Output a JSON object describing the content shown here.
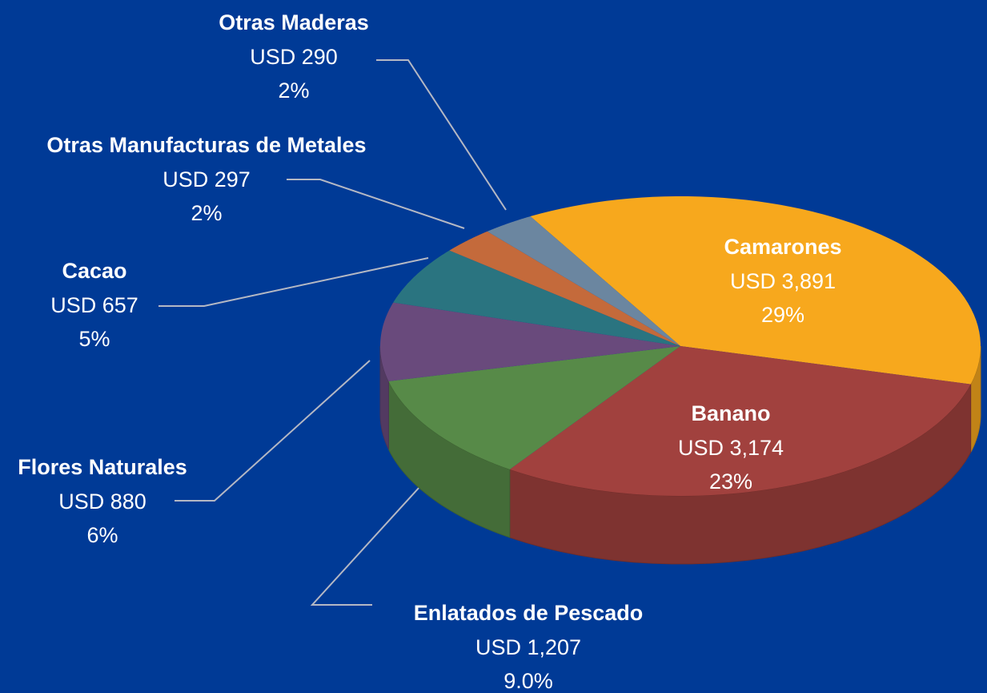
{
  "chart_data": {
    "type": "pie",
    "categories": [
      "Camarones",
      "Banano",
      "Enlatados de Pescado",
      "Flores Naturales",
      "Cacao",
      "Otras Manufacturas de Metales",
      "Otras Maderas"
    ],
    "values": [
      3891,
      3174,
      1207,
      880,
      657,
      297,
      290
    ],
    "value_labels": [
      "USD 3,891",
      "USD 3,174",
      "USD 1,207",
      "USD 880",
      "USD 657",
      "USD 297",
      "USD 290"
    ],
    "percents": [
      29,
      23,
      9.0,
      6,
      5,
      2,
      2
    ],
    "percent_labels": [
      "29%",
      "23%",
      "9.0%",
      "6%",
      "5%",
      "2%",
      "2%"
    ],
    "colors": [
      "#f7a81d",
      "#a1413e",
      "#578a48",
      "#694a7c",
      "#2a7480",
      "#c46a3b",
      "#6b86a0"
    ]
  }
}
